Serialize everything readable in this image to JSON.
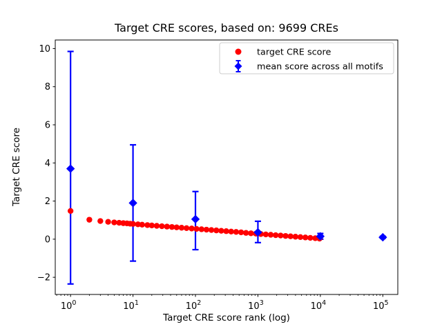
{
  "chart_data": {
    "type": "scatter",
    "title": "Target CRE scores, based on: 9699 CREs",
    "xlabel": "Target CRE score rank (log)",
    "ylabel": "Target CRE score",
    "x_scale": "log",
    "grid": false,
    "x_tick_exponents": [
      0,
      1,
      2,
      3,
      4,
      5
    ],
    "x_tick_base": "10",
    "y_ticks": [
      -2,
      0,
      2,
      4,
      6,
      8,
      10
    ],
    "xlim_log10": [
      -0.245,
      5.24
    ],
    "ylim": [
      -2.9,
      10.45
    ],
    "legend_position": "upper right",
    "series": [
      {
        "name": "target CRE score",
        "type": "scatter",
        "marker": "circle",
        "color": "#ff0000",
        "points": [
          [
            1,
            1.48
          ],
          [
            2,
            1.02
          ],
          [
            3,
            0.95
          ],
          [
            4,
            0.91
          ],
          [
            5,
            0.88
          ],
          [
            6,
            0.86
          ],
          [
            7,
            0.84
          ],
          [
            8,
            0.83
          ],
          [
            9,
            0.81
          ],
          [
            10,
            0.8
          ],
          [
            12,
            0.78
          ],
          [
            14,
            0.76
          ],
          [
            17,
            0.74
          ],
          [
            20,
            0.72
          ],
          [
            24,
            0.7
          ],
          [
            29,
            0.68
          ],
          [
            35,
            0.66
          ],
          [
            42,
            0.64
          ],
          [
            50,
            0.62
          ],
          [
            60,
            0.6
          ],
          [
            72,
            0.58
          ],
          [
            87,
            0.56
          ],
          [
            104,
            0.54
          ],
          [
            125,
            0.52
          ],
          [
            150,
            0.5
          ],
          [
            180,
            0.48
          ],
          [
            216,
            0.46
          ],
          [
            259,
            0.44
          ],
          [
            311,
            0.42
          ],
          [
            373,
            0.4
          ],
          [
            448,
            0.38
          ],
          [
            538,
            0.36
          ],
          [
            645,
            0.33
          ],
          [
            774,
            0.31
          ],
          [
            929,
            0.29
          ],
          [
            1115,
            0.27
          ],
          [
            1338,
            0.25
          ],
          [
            1606,
            0.23
          ],
          [
            1927,
            0.21
          ],
          [
            2312,
            0.19
          ],
          [
            2774,
            0.17
          ],
          [
            3329,
            0.15
          ],
          [
            3995,
            0.13
          ],
          [
            4794,
            0.11
          ],
          [
            5753,
            0.09
          ],
          [
            6904,
            0.07
          ],
          [
            8284,
            0.05
          ],
          [
            9699,
            0.03
          ]
        ]
      },
      {
        "name": "mean score across all motifs",
        "type": "errorbar",
        "marker": "diamond",
        "color": "#0000ff",
        "points": [
          {
            "x": 1,
            "y": 3.7,
            "lo": -2.35,
            "hi": 9.85
          },
          {
            "x": 10,
            "y": 1.9,
            "lo": -1.15,
            "hi": 4.95
          },
          {
            "x": 100,
            "y": 1.05,
            "lo": -0.55,
            "hi": 2.5
          },
          {
            "x": 1000,
            "y": 0.36,
            "lo": -0.18,
            "hi": 0.94
          },
          {
            "x": 10000,
            "y": 0.15,
            "lo": 0.0,
            "hi": 0.3
          },
          {
            "x": 100000,
            "y": 0.1,
            "lo": 0.05,
            "hi": 0.15
          }
        ]
      }
    ]
  }
}
